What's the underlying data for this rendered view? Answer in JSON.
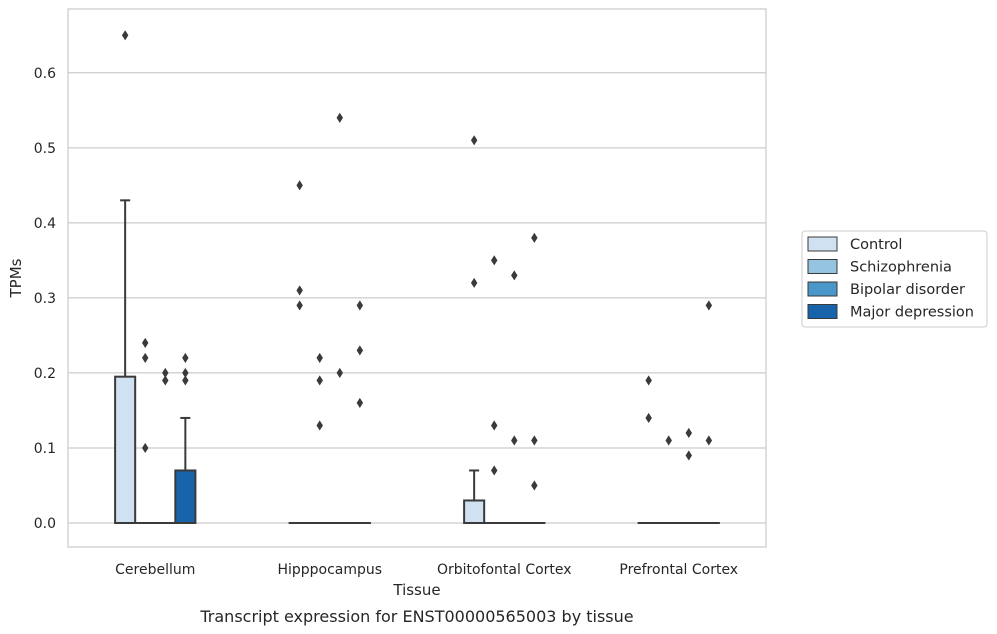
{
  "caption": "Transcript expression for ENST00000565003 by tissue",
  "chart_data": {
    "type": "box",
    "xlabel": "Tissue",
    "ylabel": "TPMs",
    "ylim": [
      -0.032,
      0.685
    ],
    "yticks": [
      "0.0",
      "0.1",
      "0.2",
      "0.3",
      "0.4",
      "0.5",
      "0.6"
    ],
    "grid": "horizontal",
    "legend_placement": "right",
    "categories": [
      "Cerebellum",
      "Hipppocampus",
      "Orbitofontal Cortex",
      "Prefrontal Cortex"
    ],
    "series": [
      {
        "name": "Control",
        "color": "#d0e1f2",
        "boxes": [
          {
            "q1": 0,
            "median": 0,
            "q3": 0.195,
            "whisker_low": 0,
            "whisker_high": 0.43,
            "outliers": [
              0.65
            ]
          },
          {
            "q1": 0,
            "median": 0,
            "q3": 0,
            "whisker_low": 0,
            "whisker_high": 0,
            "outliers": [
              0.45,
              0.31,
              0.29
            ]
          },
          {
            "q1": 0,
            "median": 0,
            "q3": 0.03,
            "whisker_low": 0,
            "whisker_high": 0.07,
            "outliers": [
              0.51,
              0.32
            ]
          },
          {
            "q1": 0,
            "median": 0,
            "q3": 0,
            "whisker_low": 0,
            "whisker_high": 0,
            "outliers": [
              0.19,
              0.14
            ]
          }
        ]
      },
      {
        "name": "Schizophrenia",
        "color": "#94c4df",
        "boxes": [
          {
            "q1": 0,
            "median": 0,
            "q3": 0,
            "whisker_low": 0,
            "whisker_high": 0,
            "outliers": [
              0.24,
              0.22,
              0.1
            ]
          },
          {
            "q1": 0,
            "median": 0,
            "q3": 0,
            "whisker_low": 0,
            "whisker_high": 0,
            "outliers": [
              0.22,
              0.19,
              0.13
            ]
          },
          {
            "q1": 0,
            "median": 0,
            "q3": 0,
            "whisker_low": 0,
            "whisker_high": 0,
            "outliers": [
              0.35,
              0.13,
              0.07
            ]
          },
          {
            "q1": 0,
            "median": 0,
            "q3": 0,
            "whisker_low": 0,
            "whisker_high": 0,
            "outliers": [
              0.11
            ]
          }
        ]
      },
      {
        "name": "Bipolar disorder",
        "color": "#4a98c9",
        "boxes": [
          {
            "q1": 0,
            "median": 0,
            "q3": 0,
            "whisker_low": 0,
            "whisker_high": 0,
            "outliers": [
              0.2,
              0.19
            ]
          },
          {
            "q1": 0,
            "median": 0,
            "q3": 0,
            "whisker_low": 0,
            "whisker_high": 0,
            "outliers": [
              0.54,
              0.2
            ]
          },
          {
            "q1": 0,
            "median": 0,
            "q3": 0,
            "whisker_low": 0,
            "whisker_high": 0,
            "outliers": [
              0.33,
              0.11
            ]
          },
          {
            "q1": 0,
            "median": 0,
            "q3": 0,
            "whisker_low": 0,
            "whisker_high": 0,
            "outliers": [
              0.12,
              0.09
            ]
          }
        ]
      },
      {
        "name": "Major depression",
        "color": "#1764ab",
        "boxes": [
          {
            "q1": 0,
            "median": 0,
            "q3": 0.07,
            "whisker_low": 0,
            "whisker_high": 0.14,
            "outliers": [
              0.22,
              0.2,
              0.19
            ]
          },
          {
            "q1": 0,
            "median": 0,
            "q3": 0,
            "whisker_low": 0,
            "whisker_high": 0,
            "outliers": [
              0.29,
              0.23,
              0.16
            ]
          },
          {
            "q1": 0,
            "median": 0,
            "q3": 0,
            "whisker_low": 0,
            "whisker_high": 0,
            "outliers": [
              0.38,
              0.11,
              0.05
            ]
          },
          {
            "q1": 0,
            "median": 0,
            "q3": 0,
            "whisker_low": 0,
            "whisker_high": 0,
            "outliers": [
              0.29,
              0.11
            ]
          }
        ]
      }
    ]
  }
}
